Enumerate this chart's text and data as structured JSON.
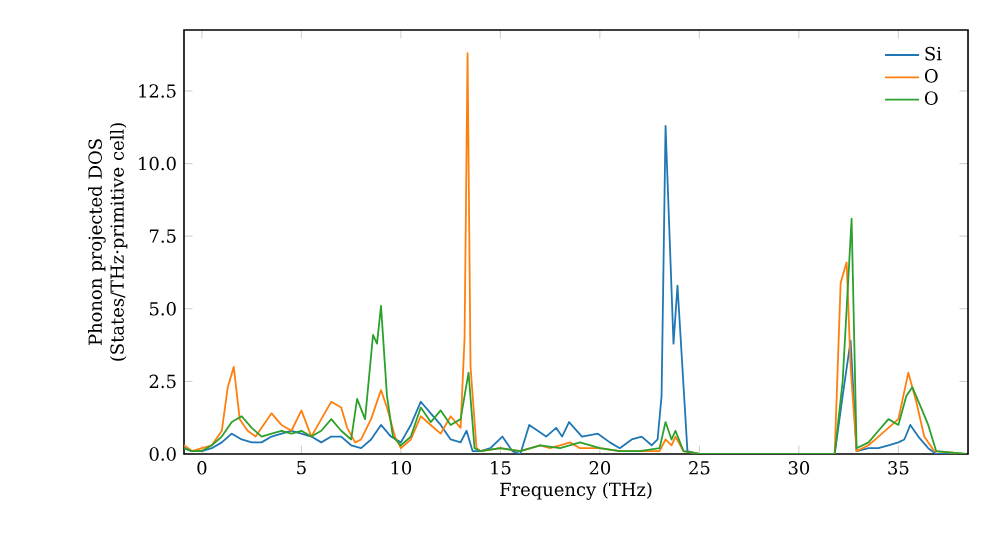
{
  "chart_data": {
    "type": "line",
    "xlabel": "Frequency (THz)",
    "ylabel": "Phonon projected DOS (States/THz·primitive cell)",
    "xlim": [
      -0.9,
      38.5
    ],
    "ylim": [
      0,
      14.6
    ],
    "xticks": [
      0,
      5,
      10,
      15,
      20,
      25,
      30,
      35
    ],
    "yticks": [
      {
        "value": 0,
        "label": "0.0"
      },
      {
        "value": 2.5,
        "label": "2.5"
      },
      {
        "value": 5,
        "label": "5.0"
      },
      {
        "value": 7.5,
        "label": "7.5"
      },
      {
        "value": 10,
        "label": "10.0"
      },
      {
        "value": 12.5,
        "label": "12.5"
      }
    ],
    "legend": "top right",
    "grid": false,
    "marker": "none",
    "line_style": "solid",
    "series": [
      {
        "name": "Si",
        "color": "#1f77b4",
        "x": [
          -0.9,
          -0.5,
          0,
          0.5,
          1,
          1.5,
          2,
          2.5,
          3,
          3.5,
          4,
          4.5,
          5,
          5.5,
          6,
          6.5,
          7,
          7.5,
          8,
          8.5,
          9,
          9.5,
          10,
          10.5,
          11,
          11.5,
          12,
          12.5,
          13,
          13.3,
          13.6,
          14,
          14.5,
          15.1,
          15.6,
          16,
          16.45,
          17.3,
          17.8,
          18.1,
          18.45,
          19.1,
          19.9,
          20.5,
          21,
          21.6,
          22.1,
          22.6,
          22.9,
          23.1,
          23.3,
          23.7,
          23.9,
          24.4,
          25,
          30,
          31.8,
          32.2,
          32.6,
          32.9,
          33.5,
          34,
          34.5,
          35,
          35.3,
          35.6,
          36,
          36.5,
          36.9,
          38.4
        ],
        "values": [
          0.2,
          0.1,
          0.1,
          0.2,
          0.4,
          0.7,
          0.5,
          0.4,
          0.4,
          0.6,
          0.7,
          0.8,
          0.7,
          0.6,
          0.4,
          0.6,
          0.6,
          0.3,
          0.2,
          0.5,
          1.0,
          0.6,
          0.4,
          1.0,
          1.8,
          1.4,
          1.0,
          0.5,
          0.4,
          0.8,
          0.1,
          0.1,
          0.2,
          0.6,
          0.1,
          0.0,
          1.0,
          0.6,
          0.9,
          0.6,
          1.1,
          0.6,
          0.7,
          0.4,
          0.2,
          0.5,
          0.6,
          0.3,
          0.5,
          2.0,
          11.3,
          3.8,
          5.8,
          0.1,
          0,
          0,
          0,
          2.0,
          3.9,
          0.1,
          0.2,
          0.2,
          0.3,
          0.4,
          0.5,
          1.0,
          0.6,
          0.2,
          0,
          0
        ]
      },
      {
        "name": "O",
        "color": "#ff7f0e",
        "x": [
          -0.9,
          -0.5,
          0,
          0.5,
          1,
          1.3,
          1.6,
          1.9,
          2.3,
          2.7,
          3,
          3.5,
          4,
          4.5,
          5,
          5.5,
          6,
          6.5,
          7,
          7.3,
          7.7,
          8,
          8.5,
          9,
          9.3,
          9.7,
          10,
          10.5,
          11,
          11.5,
          12,
          12.5,
          13,
          13.2,
          13.35,
          13.5,
          13.8,
          14,
          15,
          16,
          17,
          17.5,
          18,
          18.5,
          19,
          20,
          21,
          22,
          23,
          23.3,
          23.6,
          23.8,
          24.2,
          25,
          30,
          31.8,
          32.1,
          32.4,
          32.6,
          32.9,
          33.5,
          34,
          34.5,
          35,
          35.5,
          35.9,
          36.3,
          36.8,
          38.4
        ],
        "values": [
          0.3,
          0.1,
          0.2,
          0.3,
          0.8,
          2.3,
          3.0,
          1.2,
          0.8,
          0.6,
          0.9,
          1.4,
          1.0,
          0.8,
          1.5,
          0.6,
          1.2,
          1.8,
          1.6,
          0.9,
          0.4,
          0.5,
          1.2,
          2.2,
          1.6,
          0.6,
          0.2,
          0.5,
          1.3,
          1.0,
          0.7,
          1.3,
          0.9,
          4.0,
          13.8,
          3.0,
          0.2,
          0.1,
          0.2,
          0.1,
          0.3,
          0.2,
          0.3,
          0.4,
          0.2,
          0.2,
          0.1,
          0.1,
          0.1,
          0.5,
          0.3,
          0.6,
          0.1,
          0,
          0,
          0,
          5.9,
          6.6,
          3.0,
          0.1,
          0.3,
          0.6,
          0.9,
          1.2,
          2.8,
          1.8,
          0.6,
          0.1,
          0
        ]
      },
      {
        "name": "O",
        "color": "#2ca02c",
        "x": [
          -0.9,
          -0.5,
          0,
          0.5,
          1,
          1.5,
          2,
          2.5,
          3,
          3.5,
          4,
          4.5,
          5,
          5.5,
          6,
          6.5,
          7,
          7.5,
          7.8,
          8.2,
          8.6,
          8.8,
          9,
          9.3,
          9.6,
          10,
          10.5,
          11,
          11.5,
          12,
          12.5,
          13,
          13.4,
          13.7,
          14,
          15,
          16,
          17,
          18,
          19,
          20,
          21,
          22,
          23,
          23.3,
          23.6,
          23.8,
          24.2,
          25,
          30,
          31.8,
          32.2,
          32.65,
          32.9,
          33.5,
          34,
          34.5,
          35,
          35.4,
          35.7,
          36.2,
          36.5,
          36.9,
          38.4
        ],
        "values": [
          0.2,
          0.1,
          0.1,
          0.3,
          0.6,
          1.1,
          1.3,
          0.9,
          0.6,
          0.7,
          0.8,
          0.7,
          0.8,
          0.6,
          0.8,
          1.2,
          0.8,
          0.5,
          1.9,
          1.2,
          4.1,
          3.8,
          5.1,
          2.0,
          0.6,
          0.3,
          0.6,
          1.6,
          1.1,
          1.5,
          1.0,
          1.2,
          2.8,
          0.2,
          0.1,
          0.2,
          0.1,
          0.3,
          0.2,
          0.4,
          0.2,
          0.1,
          0.1,
          0.2,
          1.1,
          0.5,
          0.8,
          0.1,
          0,
          0,
          0,
          2.5,
          8.1,
          0.2,
          0.4,
          0.8,
          1.2,
          1.0,
          2.0,
          2.3,
          1.5,
          1.0,
          0.1,
          0
        ]
      }
    ]
  }
}
